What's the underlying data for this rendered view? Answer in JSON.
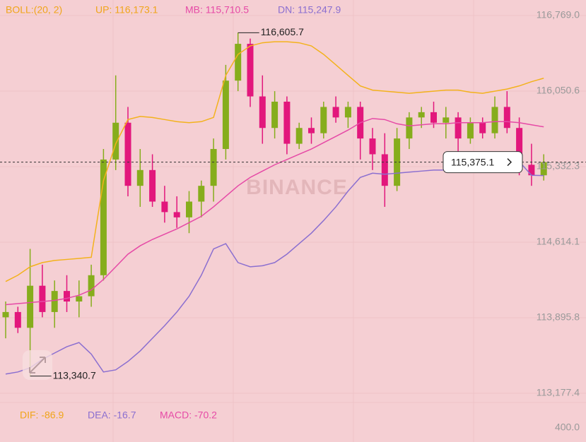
{
  "chart_data": {
    "type": "candlestick",
    "indicator_header": {
      "name": "BOLL:(20, 2)",
      "up": "UP: 116,173.1",
      "mb": "MB: 115,710.5",
      "dn": "DN: 115,247.9"
    },
    "watermark": "BINANCE",
    "ylim": [
      113177.4,
      116769.0
    ],
    "yticks": [
      {
        "value": 116769.0,
        "label": "116,769.0"
      },
      {
        "value": 116050.6,
        "label": "116,050.6"
      },
      {
        "value": 115332.3,
        "label": "115,332.3"
      },
      {
        "value": 114614.1,
        "label": "114,614.1"
      },
      {
        "value": 113895.8,
        "label": "113,895.8"
      },
      {
        "value": 113177.4,
        "label": "113,177.4"
      }
    ],
    "up_color": "#86ad1c",
    "down_color": "#e2177c",
    "candles": [
      [
        113900,
        114050,
        113700,
        113950
      ],
      [
        113950,
        114000,
        113750,
        113800
      ],
      [
        113800,
        114550,
        113340.7,
        114200
      ],
      [
        114200,
        114400,
        113900,
        113950
      ],
      [
        113950,
        114250,
        113800,
        114150
      ],
      [
        114150,
        114300,
        113950,
        114050
      ],
      [
        114050,
        114250,
        113900,
        114100
      ],
      [
        114100,
        114400,
        114000,
        114300
      ],
      [
        114300,
        115500,
        114250,
        115400
      ],
      [
        115400,
        116200,
        115300,
        115750
      ],
      [
        115750,
        115900,
        115050,
        115150
      ],
      [
        115150,
        115500,
        114950,
        115300
      ],
      [
        115300,
        115450,
        114950,
        115000
      ],
      [
        115000,
        115150,
        114800,
        114900
      ],
      [
        114900,
        115050,
        114750,
        114850
      ],
      [
        114850,
        115100,
        114700,
        115000
      ],
      [
        115000,
        115200,
        114850,
        115150
      ],
      [
        115150,
        115600,
        115000,
        115500
      ],
      [
        115500,
        116300,
        115400,
        116150
      ],
      [
        116150,
        116605.7,
        116050,
        116500
      ],
      [
        116500,
        116550,
        115900,
        116000
      ],
      [
        116000,
        116200,
        115550,
        115700
      ],
      [
        115700,
        116050,
        115600,
        115950
      ],
      [
        115950,
        116000,
        115450,
        115550
      ],
      [
        115550,
        115750,
        115500,
        115700
      ],
      [
        115700,
        115800,
        115550,
        115650
      ],
      [
        115650,
        115950,
        115600,
        115900
      ],
      [
        115900,
        116000,
        115750,
        115800
      ],
      [
        115800,
        115950,
        115700,
        115900
      ],
      [
        115900,
        115950,
        115400,
        115600
      ],
      [
        115600,
        115700,
        115300,
        115450
      ],
      [
        115450,
        115650,
        114950,
        115150
      ],
      [
        115150,
        115700,
        115100,
        115600
      ],
      [
        115600,
        115850,
        115500,
        115800
      ],
      [
        115800,
        115900,
        115700,
        115850
      ],
      [
        115850,
        115950,
        115700,
        115750
      ],
      [
        115750,
        115900,
        115600,
        115800
      ],
      [
        115800,
        115850,
        115450,
        115600
      ],
      [
        115600,
        115800,
        115550,
        115750
      ],
      [
        115750,
        115800,
        115600,
        115650
      ],
      [
        115650,
        116000,
        115600,
        115900
      ],
      [
        115900,
        116050,
        115650,
        115700
      ],
      [
        115700,
        115800,
        115250,
        115350
      ],
      [
        115350,
        115550,
        115150,
        115250
      ],
      [
        115250,
        115450,
        115200,
        115375.1
      ]
    ],
    "series": [
      {
        "name": "UP",
        "color": "#f3b21c",
        "values": [
          114240,
          114300,
          114380,
          114420,
          114440,
          114450,
          114460,
          114470,
          115200,
          115550,
          115780,
          115810,
          115800,
          115780,
          115760,
          115750,
          115760,
          115800,
          116200,
          116400,
          116480,
          116510,
          116520,
          116520,
          116510,
          116480,
          116400,
          116300,
          116200,
          116100,
          116060,
          116050,
          116040,
          116030,
          116040,
          116050,
          116060,
          116060,
          116040,
          116030,
          116050,
          116070,
          116100,
          116140,
          116173.1
        ]
      },
      {
        "name": "MB",
        "color": "#e64aa6",
        "values": [
          114020,
          114030,
          114040,
          114050,
          114060,
          114080,
          114110,
          114160,
          114260,
          114380,
          114500,
          114580,
          114640,
          114690,
          114740,
          114800,
          114860,
          114950,
          115050,
          115150,
          115230,
          115290,
          115350,
          115400,
          115450,
          115500,
          115560,
          115620,
          115680,
          115750,
          115790,
          115780,
          115740,
          115720,
          115730,
          115740,
          115740,
          115750,
          115750,
          115750,
          115760,
          115760,
          115750,
          115730,
          115710.5
        ]
      },
      {
        "name": "DN",
        "color": "#8b6fd0",
        "values": [
          113360,
          113380,
          113420,
          113500,
          113560,
          113620,
          113660,
          113550,
          113380,
          113400,
          113480,
          113580,
          113700,
          113820,
          113950,
          114100,
          114300,
          114550,
          114600,
          114420,
          114380,
          114390,
          114420,
          114500,
          114600,
          114700,
          114820,
          114950,
          115100,
          115230,
          115270,
          115260,
          115270,
          115280,
          115290,
          115300,
          115300,
          115310,
          115310,
          115320,
          115330,
          115340,
          115380,
          115250,
          115247.9
        ]
      }
    ],
    "annotations": {
      "high": {
        "value": 116605.7,
        "label": "116,605.7",
        "index": 19
      },
      "low": {
        "value": 113340.7,
        "label": "113,340.7",
        "index": 2
      },
      "current": {
        "value": 115375.1,
        "label": "115,375.1"
      }
    },
    "macd_header": {
      "dif": "DIF: -86.9",
      "dea": "DEA: -16.7",
      "macd": "MACD: -70.2"
    },
    "macd_axis_label": "400.0"
  }
}
